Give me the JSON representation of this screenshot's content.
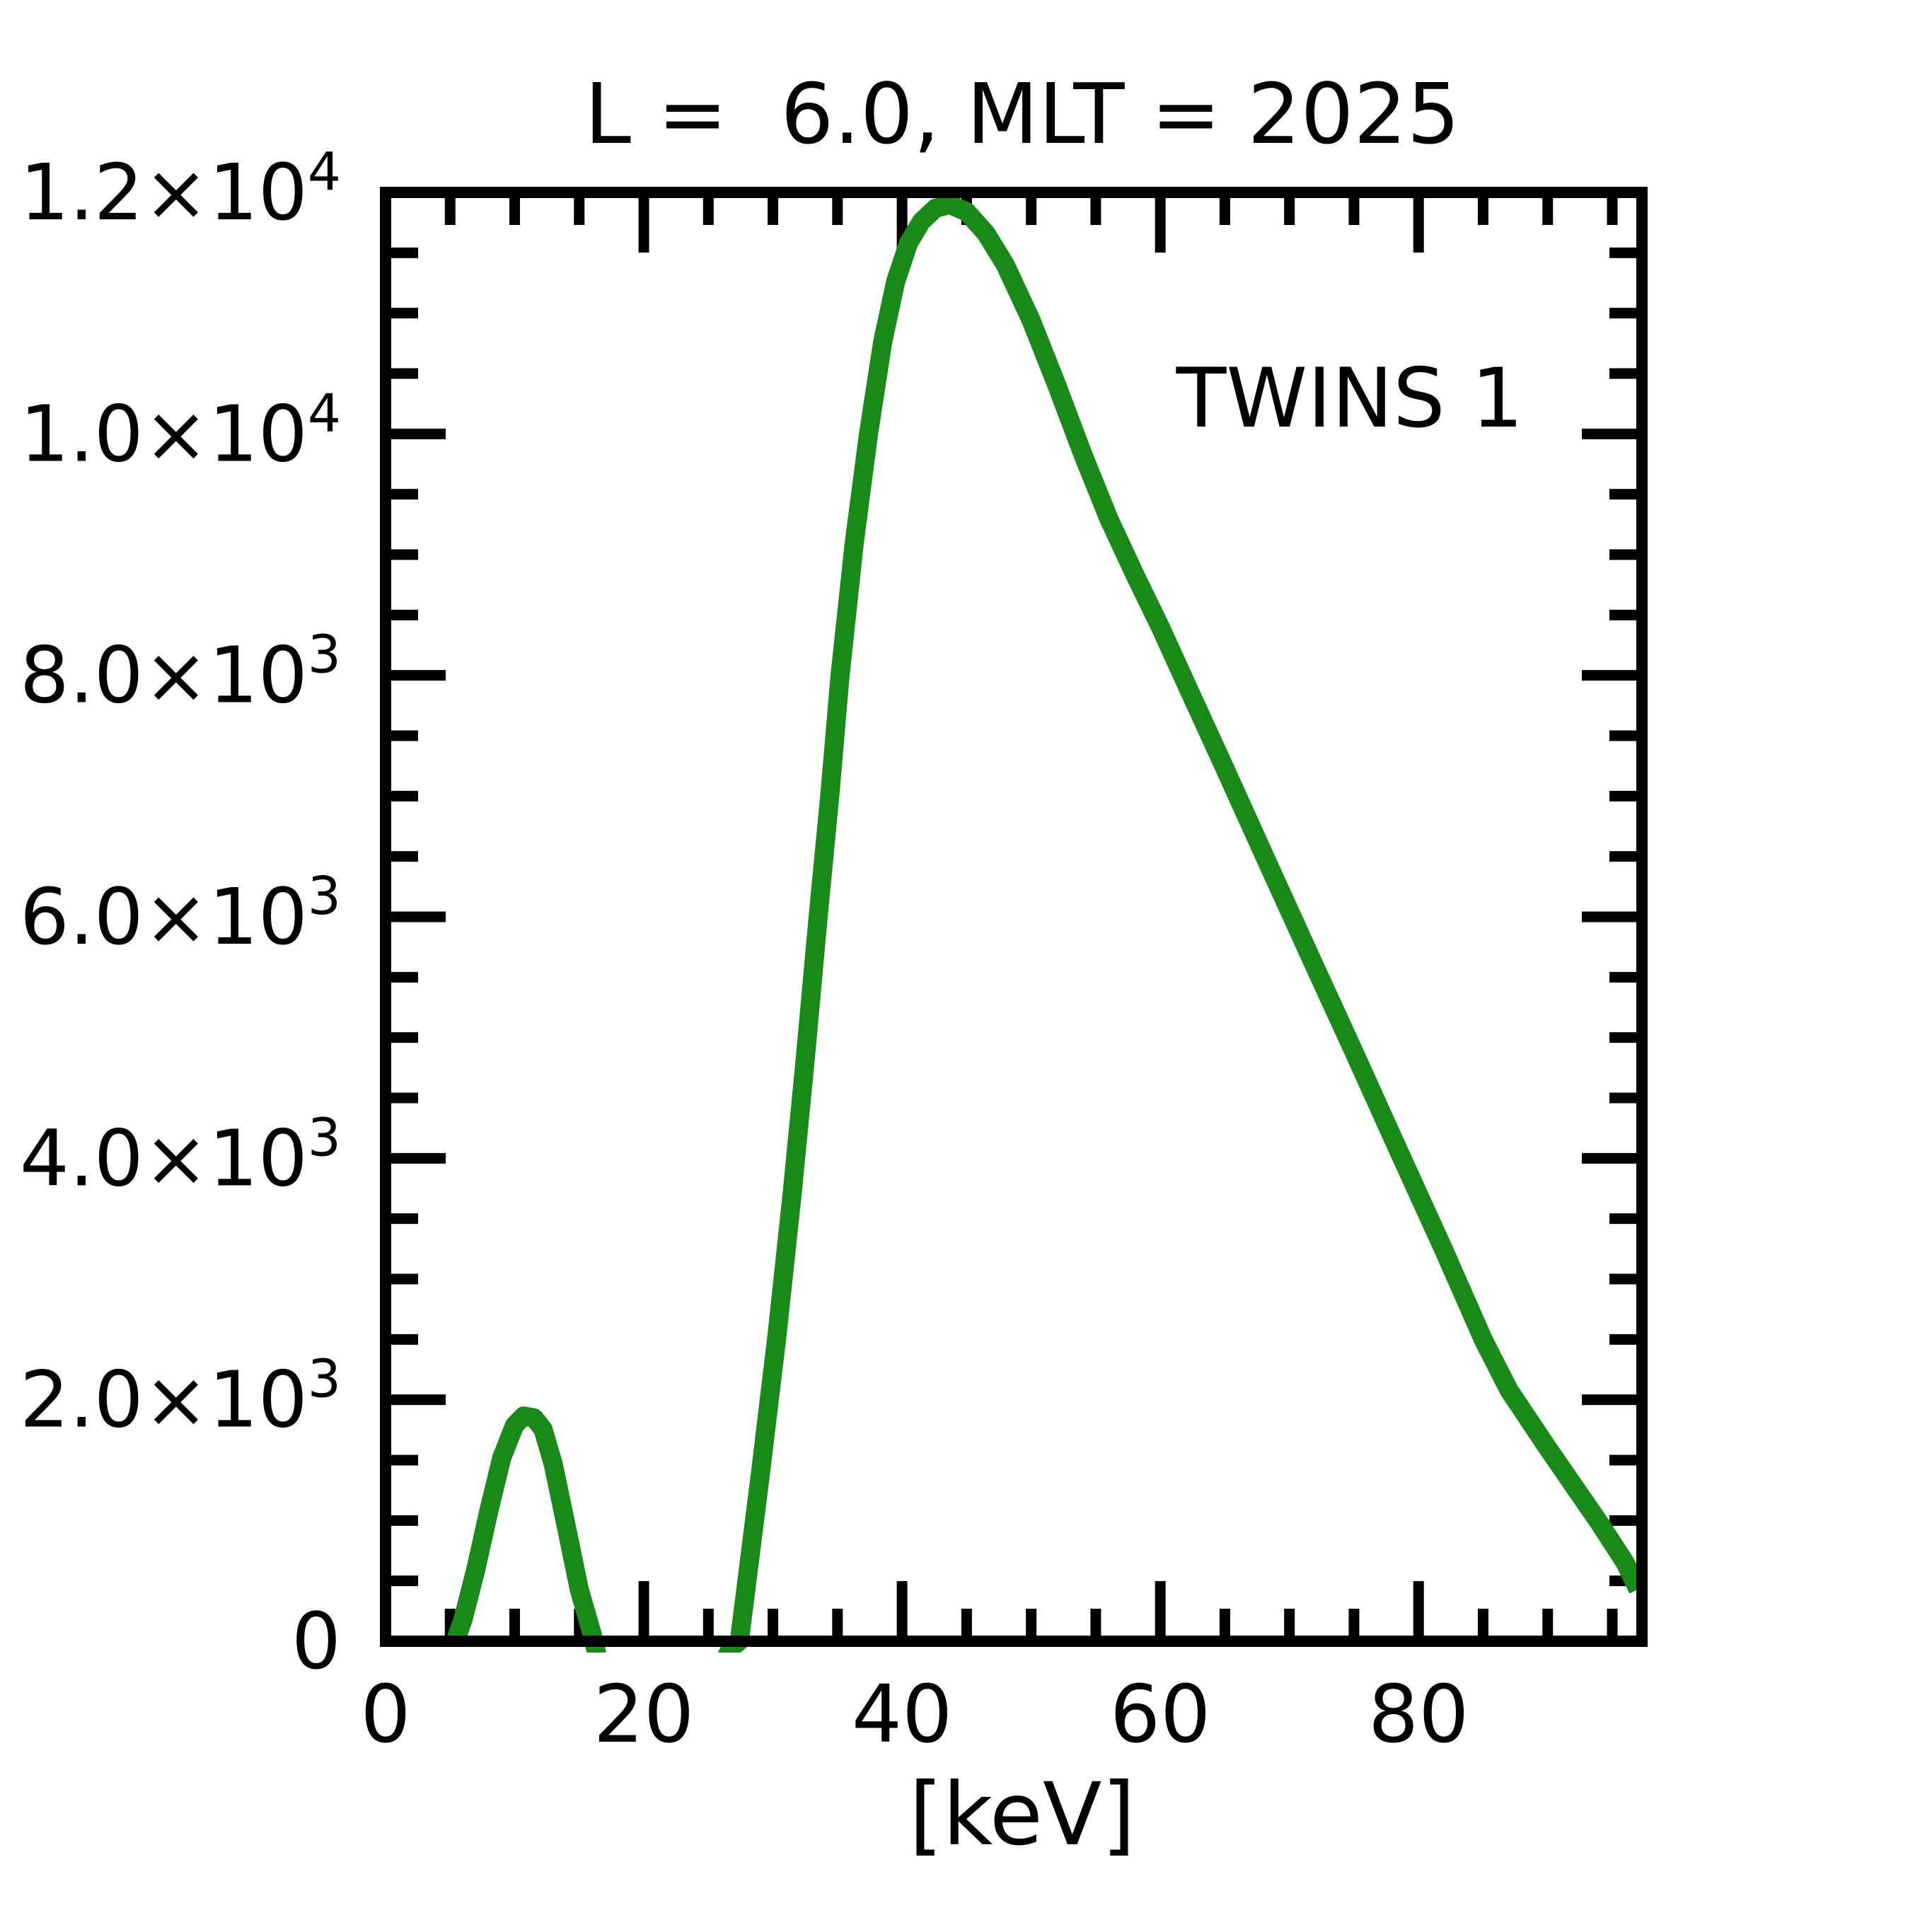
{
  "figure": {
    "background": "#ffffff",
    "text_color": "#000000"
  },
  "chart_data": {
    "type": "line",
    "title": "L =  6.0, MLT = 2025",
    "xlabel": "[keV]",
    "ylabel": "",
    "xlim": [
      0,
      97.3
    ],
    "ylim": [
      0,
      12000
    ],
    "grid": false,
    "x_major_ticks": [
      0,
      20,
      40,
      60,
      80
    ],
    "x_minor_step": 5,
    "x_tick_labels": [
      "0",
      "20",
      "40",
      "60",
      "80"
    ],
    "y_major_ticks": [
      0,
      2000,
      4000,
      6000,
      8000,
      10000,
      12000
    ],
    "y_minor_step": 500,
    "y_tick_labels": [
      {
        "value": 0,
        "mantissa": "0",
        "exp": ""
      },
      {
        "value": 2000,
        "mantissa": "2.0×10",
        "exp": "3"
      },
      {
        "value": 4000,
        "mantissa": "4.0×10",
        "exp": "3"
      },
      {
        "value": 6000,
        "mantissa": "6.0×10",
        "exp": "3"
      },
      {
        "value": 8000,
        "mantissa": "8.0×10",
        "exp": "3"
      },
      {
        "value": 10000,
        "mantissa": "1.0×10",
        "exp": "4"
      },
      {
        "value": 12000,
        "mantissa": "1.2×10",
        "exp": "4"
      }
    ],
    "legend": {
      "label": "TWINS 1",
      "position": "upper right",
      "color": "#178a17"
    },
    "series": [
      {
        "name": "TWINS 1",
        "color": "#178a17",
        "points": [
          [
            5.4,
            0
          ],
          [
            6,
            180
          ],
          [
            7,
            600
          ],
          [
            8,
            1080
          ],
          [
            9,
            1520
          ],
          [
            10,
            1790
          ],
          [
            10.7,
            1865
          ],
          [
            11.5,
            1850
          ],
          [
            12.2,
            1755
          ],
          [
            13,
            1460
          ],
          [
            14,
            950
          ],
          [
            15,
            430
          ],
          [
            16,
            60
          ],
          [
            17,
            -400
          ],
          [
            19,
            -750
          ],
          [
            21,
            -870
          ],
          [
            23,
            -820
          ],
          [
            25,
            -450
          ],
          [
            26.7,
            -60
          ],
          [
            27.4,
            0
          ],
          [
            28.2,
            680
          ],
          [
            29,
            1360
          ],
          [
            30.3,
            2520
          ],
          [
            31.5,
            3720
          ],
          [
            32.5,
            4820
          ],
          [
            33.5,
            6000
          ],
          [
            34.4,
            7000
          ],
          [
            35.2,
            8000
          ],
          [
            36.3,
            9100
          ],
          [
            37.4,
            10000
          ],
          [
            38.5,
            10760
          ],
          [
            39.5,
            11260
          ],
          [
            40.5,
            11580
          ],
          [
            41.5,
            11760
          ],
          [
            42.6,
            11870
          ],
          [
            43.7,
            11900
          ],
          [
            45,
            11840
          ],
          [
            46.5,
            11660
          ],
          [
            48,
            11400
          ],
          [
            50,
            10940
          ],
          [
            52,
            10400
          ],
          [
            54,
            9830
          ],
          [
            56,
            9300
          ],
          [
            58,
            8840
          ],
          [
            60,
            8400
          ],
          [
            62,
            7930
          ],
          [
            65,
            7230
          ],
          [
            68,
            6520
          ],
          [
            70,
            6050
          ],
          [
            72,
            5580
          ],
          [
            75,
            4880
          ],
          [
            78,
            4170
          ],
          [
            80,
            3700
          ],
          [
            82,
            3230
          ],
          [
            85,
            2500
          ],
          [
            87,
            2080
          ],
          [
            90,
            1600
          ],
          [
            92,
            1290
          ],
          [
            94,
            980
          ],
          [
            96,
            650
          ],
          [
            97,
            430
          ]
        ]
      }
    ]
  }
}
